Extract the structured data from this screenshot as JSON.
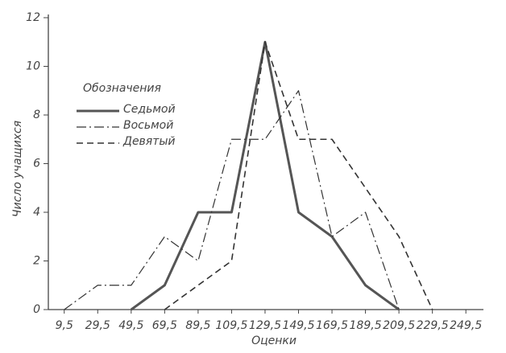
{
  "chart_data": {
    "type": "line",
    "x_label": "Оценки",
    "y_label": "Число учащихся",
    "legend_title": "Обозначения",
    "legend": "upper-left",
    "x": [
      9.5,
      29.5,
      49.5,
      69.5,
      89.5,
      109.5,
      129.5,
      149.5,
      169.5,
      189.5,
      209.5,
      229.5
    ],
    "series": [
      {
        "name": "Седьмой",
        "color": "#555555",
        "linestyle": "solid",
        "linewidth": 3,
        "values": [
          null,
          null,
          0,
          1,
          4,
          4,
          11,
          4,
          3,
          1,
          0,
          null
        ]
      },
      {
        "name": "Восьмой",
        "color": "#333333",
        "linestyle": "dashdot",
        "linewidth": 1.2,
        "values": [
          0,
          1,
          1,
          3,
          2,
          7,
          7,
          9,
          3,
          4,
          0,
          null
        ]
      },
      {
        "name": "Девятый",
        "color": "#333333",
        "linestyle": "dashed",
        "linewidth": 1.6,
        "values": [
          null,
          null,
          null,
          0,
          1,
          2,
          11,
          7,
          7,
          5,
          3,
          0
        ]
      }
    ],
    "xlim": [
      0,
      260
    ],
    "xticks": [
      {
        "value": 9.5,
        "label": "9,5"
      },
      {
        "value": 29.5,
        "label": "29,5"
      },
      {
        "value": 49.5,
        "label": "49,5"
      },
      {
        "value": 69.5,
        "label": "69,5"
      },
      {
        "value": 89.5,
        "label": "89,5"
      },
      {
        "value": 109.5,
        "label": "109,5"
      },
      {
        "value": 129.5,
        "label": "129,5"
      },
      {
        "value": 149.5,
        "label": "149,5"
      },
      {
        "value": 169.5,
        "label": "169,5"
      },
      {
        "value": 189.5,
        "label": "189,5"
      },
      {
        "value": 209.5,
        "label": "209,5"
      },
      {
        "value": 229.5,
        "label": "229,5"
      },
      {
        "value": 249.5,
        "label": "249,5"
      }
    ],
    "ylim": [
      0,
      12
    ],
    "yticks": [
      0,
      2,
      4,
      6,
      8,
      10,
      12
    ],
    "grid": false
  }
}
